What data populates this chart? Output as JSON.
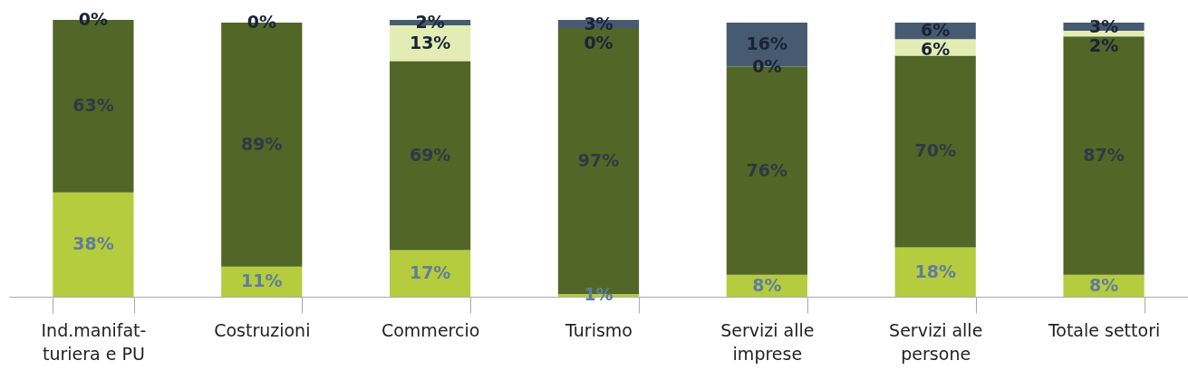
{
  "chart_data": {
    "type": "bar",
    "stacked": true,
    "tick_labels": "x",
    "categories": [
      "Ind.manifat-turiera e PU",
      "Costruzioni",
      "Commercio",
      "Turismo",
      "Servizi alle imprese",
      "Servizi alle persone",
      "Totale settori"
    ],
    "series": [
      {
        "color": "#b5cc3e",
        "values": [
          38,
          11,
          17,
          1,
          8,
          18,
          8
        ],
        "value_labels": [
          "38%",
          "11%",
          "17%",
          "1%",
          "8%",
          "18%",
          "8%"
        ]
      },
      {
        "color": "#526628",
        "values": [
          63,
          89,
          69,
          97,
          76,
          70,
          87
        ],
        "value_labels": [
          "63%",
          "89%",
          "69%",
          "97%",
          "76%",
          "70%",
          "87%"
        ]
      },
      {
        "color": "#e3ecb5",
        "values": [
          0,
          0,
          13,
          0,
          0,
          6,
          2
        ],
        "value_labels": [
          "0%",
          "0%",
          "13%",
          "0%",
          "0%",
          "6%",
          "2%"
        ]
      },
      {
        "color": "#465b70",
        "values": [
          0,
          0,
          2,
          3,
          16,
          6,
          3
        ],
        "value_labels": [
          null,
          null,
          "2%",
          "3%",
          "16%",
          "6%",
          "3%"
        ]
      }
    ]
  }
}
